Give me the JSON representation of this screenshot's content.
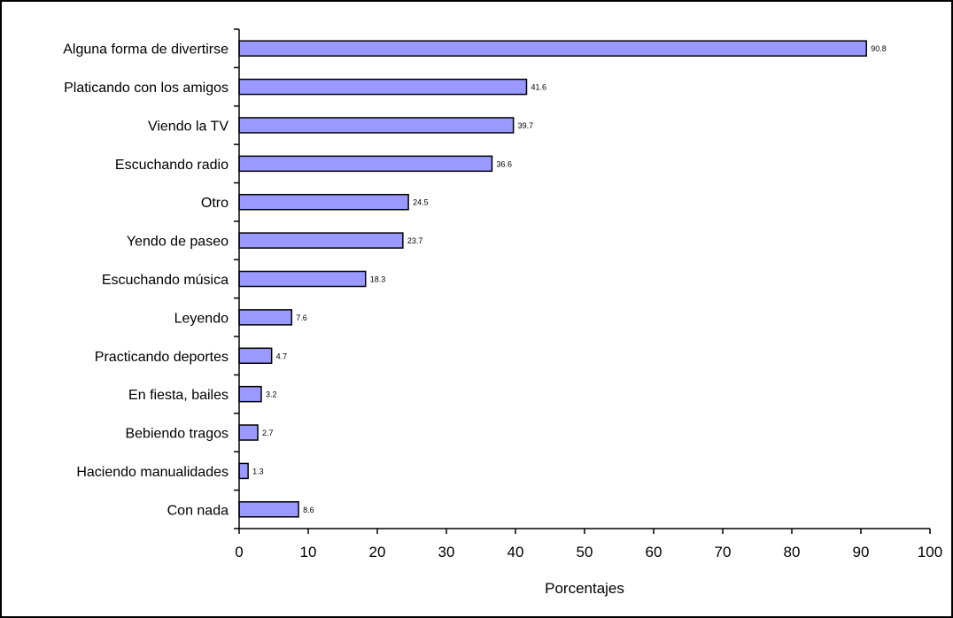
{
  "chart_data": {
    "type": "bar",
    "orientation": "horizontal",
    "categories": [
      "Alguna forma de divertirse",
      "Platicando con los amigos",
      "Viendo la TV",
      "Escuchando radio",
      "Otro",
      "Yendo de paseo",
      "Escuchando música",
      "Leyendo",
      "Practicando deportes",
      "En fiesta, bailes",
      "Bebiendo tragos",
      "Haciendo manualidades",
      "Con nada"
    ],
    "values": [
      90.8,
      41.6,
      39.7,
      36.6,
      24.5,
      23.7,
      18.3,
      7.6,
      4.7,
      3.2,
      2.7,
      1.3,
      8.6
    ],
    "value_labels": [
      "90.8",
      "41.6",
      "39.7",
      "36.6",
      "24.5",
      "23.7",
      "18.3",
      "7.6",
      "4.7",
      "3.2",
      "2.7",
      "1.3",
      "8.6"
    ],
    "xlabel": "Porcentajes",
    "xlim": [
      0,
      100
    ],
    "xticks": [
      "0",
      "10",
      "20",
      "30",
      "40",
      "50",
      "60",
      "70",
      "80",
      "90",
      "100"
    ],
    "grid": false,
    "legend": "none",
    "bar_color": "#9999FF",
    "bar_outline": "#000000"
  }
}
